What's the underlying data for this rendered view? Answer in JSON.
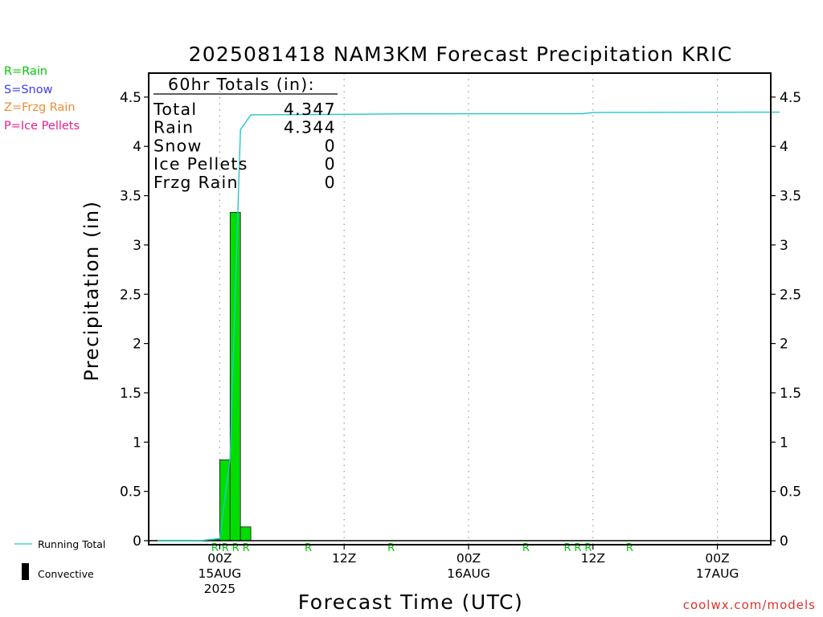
{
  "precip_types": [
    {
      "label": "R=Rain",
      "color": "#00c800"
    },
    {
      "label": "S=Snow",
      "color": "#3c3cf0"
    },
    {
      "label": "Z=Frzg Rain",
      "color": "#f08a32"
    },
    {
      "label": "P=Ice Pellets",
      "color": "#e61e8c"
    }
  ],
  "legend": {
    "running_total": "Running Total",
    "convective": "Convective"
  },
  "credit": "coolwx.com/models",
  "totals_box": {
    "title": "60hr Totals (in):",
    "rows": [
      {
        "label": "Total",
        "value": "4.347"
      },
      {
        "label": "Rain",
        "value": "4.344"
      },
      {
        "label": "Snow",
        "value": "0"
      },
      {
        "label": "Ice Pellets",
        "value": "0"
      },
      {
        "label": "Frzg Rain",
        "value": "0"
      }
    ]
  },
  "chart_data": {
    "type": "bar",
    "title": "2025081418 NAM3KM Forecast Precipitation KRIC",
    "xlabel": "Forecast Time (UTC)",
    "ylabel": "Precipitation (in)",
    "ylim": [
      0,
      4.75
    ],
    "xlim": [
      "2025-08-14T18Z",
      "2025-08-17T06Z"
    ],
    "yticks": [
      "0",
      "0.5",
      "1",
      "1.5",
      "2",
      "2.5",
      "3",
      "3.5",
      "4",
      "4.5"
    ],
    "xticks": [
      {
        "t": "2025-08-15T00Z",
        "lines": [
          "00Z",
          "15AUG",
          "2025"
        ]
      },
      {
        "t": "2025-08-15T12Z",
        "lines": [
          "12Z"
        ]
      },
      {
        "t": "2025-08-16T00Z",
        "lines": [
          "00Z",
          "16AUG"
        ]
      },
      {
        "t": "2025-08-16T12Z",
        "lines": [
          "12Z"
        ]
      },
      {
        "t": "2025-08-17T00Z",
        "lines": [
          "00Z",
          "17AUG"
        ]
      }
    ],
    "grid": "vertical dotted at 00Z and 12Z",
    "series": [
      {
        "name": "Hourly precipitation",
        "color": "#00dd00",
        "points": [
          {
            "t": "2025-08-15T00Z",
            "v": 0.01
          },
          {
            "t": "2025-08-15T01Z",
            "v": 0.82
          },
          {
            "t": "2025-08-15T02Z",
            "v": 3.33
          },
          {
            "t": "2025-08-15T03Z",
            "v": 0.14
          }
        ]
      },
      {
        "name": "Running Total",
        "color": "#20c8c8",
        "points": [
          {
            "t": "2025-08-14T18Z",
            "v": 0.0
          },
          {
            "t": "2025-08-14T22Z",
            "v": 0.0
          },
          {
            "t": "2025-08-15T00Z",
            "v": 0.02
          },
          {
            "t": "2025-08-15T01Z",
            "v": 0.84
          },
          {
            "t": "2025-08-15T02Z",
            "v": 4.17
          },
          {
            "t": "2025-08-15T03Z",
            "v": 4.32
          },
          {
            "t": "2025-08-15T12Z",
            "v": 4.325
          },
          {
            "t": "2025-08-15T18Z",
            "v": 4.33
          },
          {
            "t": "2025-08-16T11Z",
            "v": 4.332
          },
          {
            "t": "2025-08-16T12Z",
            "v": 4.343
          },
          {
            "t": "2025-08-16T15Z",
            "v": 4.345
          },
          {
            "t": "2025-08-17T06Z",
            "v": 4.347
          }
        ]
      }
    ],
    "precip_type_markers": [
      {
        "t": "2025-08-15T00Z",
        "label": "R"
      },
      {
        "t": "2025-08-15T01Z",
        "label": "R"
      },
      {
        "t": "2025-08-15T02Z",
        "label": "R"
      },
      {
        "t": "2025-08-15T03Z",
        "label": "R"
      },
      {
        "t": "2025-08-15T09Z",
        "label": "R"
      },
      {
        "t": "2025-08-15T17Z",
        "label": "R"
      },
      {
        "t": "2025-08-16T06Z",
        "label": "R"
      },
      {
        "t": "2025-08-16T10Z",
        "label": "R"
      },
      {
        "t": "2025-08-16T11Z",
        "label": "R"
      },
      {
        "t": "2025-08-16T12Z",
        "label": "R"
      },
      {
        "t": "2025-08-16T16Z",
        "label": "R"
      }
    ]
  }
}
